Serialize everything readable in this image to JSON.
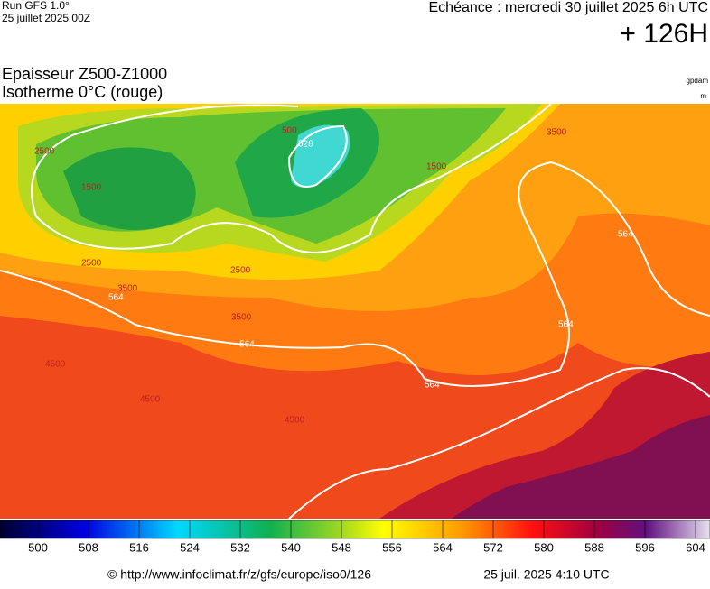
{
  "header": {
    "run": "Run GFS 1.0°",
    "run_date": "25 juillet 2025 00Z",
    "valid": "Echéance : mercredi 30 juillet 2025 6h UTC",
    "lead": "+ 126H",
    "title": "Epaisseur Z500-Z1000",
    "subtitle": "Isotherme 0°C (rouge)",
    "unit_thickness": "gpdam",
    "unit_iso": "m"
  },
  "map": {
    "contour_labels": [
      "528",
      "564",
      "564",
      "564",
      "564",
      "564",
      "2500",
      "2500",
      "2500",
      "1500",
      "1500",
      "3500",
      "3500",
      "3500",
      "4500",
      "4500",
      "4500",
      "500"
    ]
  },
  "colorbar": {
    "ticks": [
      500,
      508,
      516,
      524,
      532,
      540,
      548,
      556,
      564,
      572,
      580,
      588,
      596,
      604
    ]
  },
  "footer": {
    "url": "© http://www.infoclimat.fr/z/gfs/europe/iso0/126",
    "generated": "25 juil. 2025  4:10 UTC"
  }
}
